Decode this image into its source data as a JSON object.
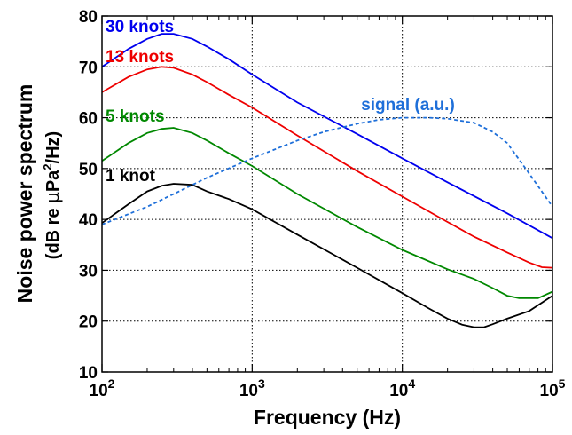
{
  "chart_data": {
    "type": "line",
    "x_scale": "log",
    "xlim": [
      100,
      100000
    ],
    "ylim": [
      10,
      80
    ],
    "grid": true,
    "xlabel": "Frequency (Hz)",
    "ylabel_line1": "Noise power spectrum",
    "ylabel_line2_pre": "(dB re ",
    "ylabel_line2_mu": "μ",
    "ylabel_line2_mid": "Pa",
    "ylabel_line2_sup": "2",
    "ylabel_line2_post": "/Hz)",
    "x_ticks": [
      {
        "value": 100,
        "base": "10",
        "exp": "2"
      },
      {
        "value": 1000,
        "base": "10",
        "exp": "3"
      },
      {
        "value": 10000,
        "base": "10",
        "exp": "4"
      },
      {
        "value": 100000,
        "base": "10",
        "exp": "5"
      }
    ],
    "y_ticks": [
      10,
      20,
      30,
      40,
      50,
      60,
      70,
      80
    ],
    "series": [
      {
        "name": "30 knots",
        "color": "#0000ee",
        "dashed": false,
        "label": "30 knots",
        "x": [
          100,
          150,
          200,
          250,
          300,
          400,
          500,
          700,
          1000,
          2000,
          5000,
          10000,
          20000,
          50000,
          100000
        ],
        "y": [
          70,
          73.5,
          75.5,
          76.5,
          76.5,
          75.5,
          74,
          71.5,
          68.5,
          63,
          56.8,
          52,
          47.3,
          41.2,
          36.3
        ]
      },
      {
        "name": "13 knots",
        "color": "#ee0000",
        "dashed": false,
        "label": "13 knots",
        "x": [
          100,
          150,
          200,
          250,
          300,
          400,
          500,
          700,
          1000,
          2000,
          5000,
          10000,
          20000,
          30000,
          50000,
          70000,
          85000,
          100000
        ],
        "y": [
          65,
          68,
          69.5,
          70,
          69.8,
          68.5,
          67,
          64.5,
          62,
          56.5,
          49.5,
          44.5,
          39.5,
          36.6,
          33.5,
          31.5,
          30.6,
          30.5
        ]
      },
      {
        "name": "5 knots",
        "color": "#008800",
        "dashed": false,
        "label": "5 knots",
        "x": [
          100,
          150,
          200,
          250,
          300,
          400,
          500,
          700,
          1000,
          2000,
          5000,
          10000,
          20000,
          30000,
          40000,
          50000,
          60000,
          80000,
          100000
        ],
        "y": [
          51.5,
          55,
          57,
          57.8,
          58,
          57,
          55.5,
          53,
          50.5,
          45,
          38.5,
          34,
          30.2,
          28.3,
          26.5,
          25,
          24.5,
          24.5,
          25.8
        ]
      },
      {
        "name": "1 knot",
        "color": "#000000",
        "dashed": false,
        "label": "1 knot",
        "x": [
          100,
          150,
          200,
          250,
          300,
          400,
          500,
          700,
          1000,
          2000,
          5000,
          10000,
          15000,
          20000,
          25000,
          30000,
          35000,
          40000,
          50000,
          70000,
          100000
        ],
        "y": [
          39.3,
          43,
          45.5,
          46.6,
          47,
          46.8,
          45.5,
          44,
          42,
          37,
          30.5,
          25.5,
          22.5,
          20.5,
          19.3,
          18.8,
          18.8,
          19.4,
          20.5,
          22,
          25
        ]
      },
      {
        "name": "signal (a.u.)",
        "color": "#1e6fd9",
        "dashed": true,
        "label": "signal (a.u.)",
        "x": [
          100,
          200,
          300,
          500,
          1000,
          2000,
          3000,
          5000,
          7000,
          10000,
          15000,
          20000,
          30000,
          40000,
          50000,
          70000,
          100000
        ],
        "y": [
          39,
          42.5,
          45,
          48.2,
          52,
          55.5,
          57.2,
          58.8,
          59.6,
          60,
          60,
          59.8,
          59,
          57.2,
          55,
          49,
          42.5
        ]
      }
    ]
  }
}
